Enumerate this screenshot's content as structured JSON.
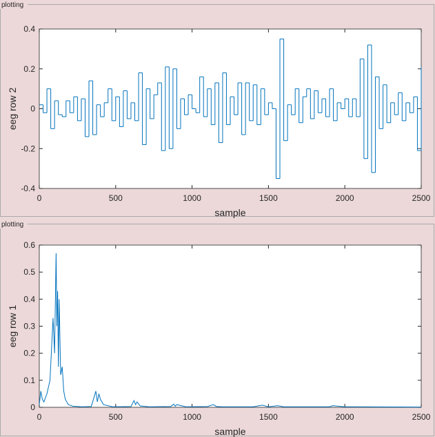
{
  "panels": [
    {
      "title": "plotting"
    },
    {
      "title": "plotting"
    }
  ],
  "chart_data": [
    {
      "type": "stairs",
      "xlabel": "sample",
      "ylabel": "eeg row 2",
      "color": "#0072bd",
      "x": [
        0,
        25,
        50,
        75,
        100,
        125,
        150,
        175,
        200,
        225,
        250,
        275,
        300,
        325,
        350,
        375,
        400,
        425,
        450,
        475,
        500,
        525,
        550,
        575,
        600,
        625,
        650,
        675,
        700,
        725,
        750,
        775,
        800,
        825,
        850,
        875,
        900,
        925,
        950,
        975,
        1000,
        1025,
        1050,
        1075,
        1100,
        1125,
        1150,
        1175,
        1200,
        1225,
        1250,
        1275,
        1300,
        1325,
        1350,
        1375,
        1400,
        1425,
        1450,
        1475,
        1500,
        1525,
        1550,
        1575,
        1600,
        1625,
        1650,
        1675,
        1700,
        1725,
        1750,
        1775,
        1800,
        1825,
        1850,
        1875,
        1900,
        1925,
        1950,
        1975,
        2000,
        2025,
        2050,
        2075,
        2100,
        2125,
        2150,
        2175,
        2200,
        2225,
        2250,
        2275,
        2300,
        2325,
        2350,
        2375,
        2400,
        2425,
        2450,
        2475,
        2500
      ],
      "values": [
        0.02,
        -0.02,
        0.1,
        -0.1,
        0.04,
        -0.03,
        -0.04,
        0.04,
        -0.02,
        0.06,
        -0.06,
        0.05,
        -0.14,
        0.14,
        -0.13,
        0.02,
        -0.04,
        0.03,
        0.1,
        -0.06,
        0.06,
        -0.09,
        0.09,
        -0.05,
        0.03,
        -0.06,
        0.18,
        -0.18,
        0.1,
        -0.05,
        0.07,
        0.13,
        -0.21,
        0.21,
        -0.2,
        0.2,
        -0.1,
        0.05,
        -0.03,
        0.07,
        0,
        -0.02,
        0.16,
        -0.04,
        0.1,
        -0.08,
        0.13,
        -0.17,
        0.18,
        -0.08,
        0.06,
        -0.03,
        0.13,
        -0.13,
        0.13,
        -0.06,
        0.12,
        -0.08,
        0.1,
        -0.03,
        0.03,
        0,
        -0.35,
        0.35,
        -0.16,
        0.02,
        -0.03,
        0.1,
        -0.07,
        0.06,
        0.1,
        -0.05,
        0.09,
        -0.02,
        0.05,
        -0.04,
        0.1,
        -0.06,
        0.03,
        0,
        0.05,
        -0.04,
        0.05,
        -0.04,
        0.25,
        -0.25,
        0.32,
        -0.32,
        0.16,
        -0.1,
        0.12,
        -0.07,
        0.03,
        -0.03,
        0.08,
        -0.06,
        0.03,
        -0.02,
        0.06,
        -0.21,
        0.21
      ],
      "xlim": [
        0,
        2500
      ],
      "xticks": [
        0,
        500,
        1000,
        1500,
        2000,
        2500
      ],
      "ylim": [
        -0.4,
        0.4
      ],
      "yticks": [
        -0.4,
        -0.2,
        0,
        0.2,
        0.4
      ]
    },
    {
      "type": "line",
      "xlabel": "sample",
      "ylabel": "eeg row 1",
      "color": "#0072bd",
      "x": [
        0,
        10,
        20,
        30,
        50,
        70,
        90,
        100,
        110,
        115,
        120,
        125,
        130,
        140,
        150,
        160,
        170,
        190,
        220,
        280,
        340,
        360,
        370,
        380,
        390,
        400,
        420,
        480,
        600,
        620,
        630,
        640,
        660,
        720,
        860,
        880,
        890,
        900,
        960,
        1100,
        1140,
        1160,
        1200,
        1400,
        1460,
        1500,
        1560,
        1600,
        1800,
        1900,
        1920,
        2000,
        2500
      ],
      "values": [
        0.01,
        0.06,
        0.03,
        0.02,
        0.05,
        0.1,
        0.33,
        0.2,
        0.57,
        0.3,
        0.43,
        0.15,
        0.4,
        0.12,
        0.15,
        0.06,
        0.03,
        0.01,
        0.004,
        0.002,
        0.003,
        0.04,
        0.06,
        0.02,
        0.05,
        0.03,
        0.01,
        0.002,
        0.003,
        0.025,
        0.01,
        0.02,
        0.005,
        0.002,
        0.003,
        0.012,
        0.004,
        0.01,
        0.002,
        0.003,
        0.01,
        0.003,
        0.002,
        0.002,
        0.008,
        0.002,
        0.006,
        0.002,
        0.002,
        0.002,
        0.006,
        0.002,
        0.001
      ],
      "xlim": [
        0,
        2500
      ],
      "xticks": [
        0,
        500,
        1000,
        1500,
        2000,
        2500
      ],
      "ylim": [
        0,
        0.6
      ],
      "yticks": [
        0,
        0.1,
        0.2,
        0.3,
        0.4,
        0.5,
        0.6
      ]
    }
  ]
}
